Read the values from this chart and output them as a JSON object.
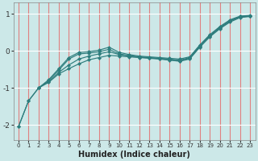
{
  "xlabel": "Humidex (Indice chaleur)",
  "bg_color": "#cce8e8",
  "line_color": "#2d7d7d",
  "vgrid_color": "#e08080",
  "hgrid_color": "#ffffff",
  "xlim": [
    -0.5,
    23.5
  ],
  "ylim": [
    -2.4,
    1.3
  ],
  "yticks": [
    -2,
    -1,
    0,
    1
  ],
  "xticks": [
    0,
    1,
    2,
    3,
    4,
    5,
    6,
    7,
    8,
    9,
    10,
    11,
    12,
    13,
    14,
    15,
    16,
    17,
    18,
    19,
    20,
    21,
    22,
    23
  ],
  "lines": [
    {
      "x": [
        0,
        1,
        2,
        3,
        4,
        5,
        6,
        7,
        8,
        9,
        10,
        11,
        12,
        13,
        14,
        15,
        16,
        17,
        18,
        19,
        20,
        21,
        22,
        23
      ],
      "y": [
        -2.05,
        -1.35,
        -1.0,
        -0.85,
        -0.62,
        -0.48,
        -0.35,
        -0.24,
        -0.18,
        -0.12,
        -0.14,
        -0.16,
        -0.18,
        -0.2,
        -0.22,
        -0.25,
        -0.28,
        -0.22,
        0.1,
        0.38,
        0.6,
        0.78,
        0.9,
        0.93
      ]
    },
    {
      "x": [
        0,
        1,
        2,
        3,
        4,
        5,
        6,
        7,
        8,
        9,
        10,
        11,
        12,
        13,
        14,
        15,
        16,
        17,
        18,
        19,
        20,
        21,
        22,
        23
      ],
      "y": [
        -2.05,
        -1.35,
        -1.0,
        -0.83,
        -0.58,
        -0.38,
        -0.22,
        -0.14,
        -0.08,
        -0.02,
        -0.1,
        -0.14,
        -0.17,
        -0.19,
        -0.21,
        -0.24,
        -0.27,
        -0.2,
        0.12,
        0.4,
        0.62,
        0.8,
        0.92,
        0.94
      ]
    },
    {
      "x": [
        2,
        3,
        4,
        5,
        6,
        7,
        8,
        9,
        10,
        11,
        12,
        13,
        14,
        15,
        16,
        17,
        18,
        19,
        20,
        21,
        22,
        23
      ],
      "y": [
        -1.0,
        -0.8,
        -0.52,
        -0.22,
        -0.08,
        -0.06,
        -0.02,
        0.04,
        -0.08,
        -0.13,
        -0.16,
        -0.18,
        -0.2,
        -0.22,
        -0.25,
        -0.18,
        0.14,
        0.42,
        0.64,
        0.82,
        0.93,
        0.95
      ]
    },
    {
      "x": [
        2,
        3,
        4,
        5,
        6,
        7,
        8,
        9,
        10,
        11,
        12,
        13,
        14,
        15,
        16,
        17,
        18,
        19,
        20,
        21,
        22,
        23
      ],
      "y": [
        -1.0,
        -0.78,
        -0.48,
        -0.18,
        -0.04,
        -0.02,
        0.02,
        0.1,
        -0.04,
        -0.1,
        -0.14,
        -0.16,
        -0.18,
        -0.2,
        -0.22,
        -0.16,
        0.16,
        0.44,
        0.66,
        0.84,
        0.94,
        0.96
      ]
    }
  ]
}
